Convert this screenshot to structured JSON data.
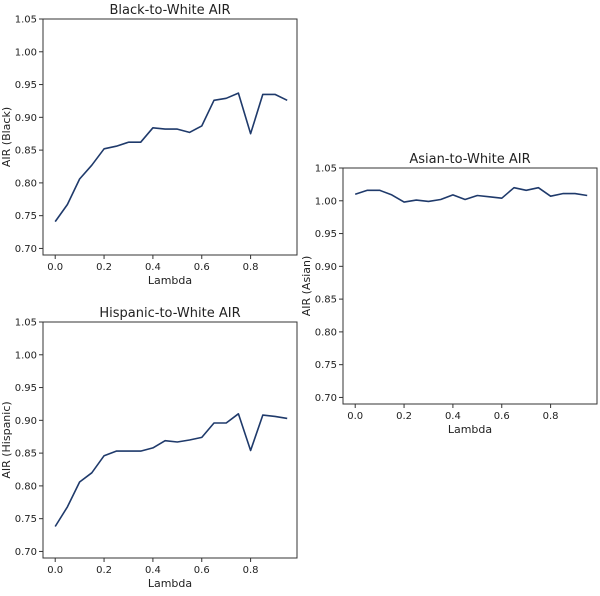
{
  "chart_data": [
    {
      "type": "line",
      "title": "Black-to-White AIR",
      "xlabel": "Lambda",
      "ylabel": "AIR (Black)",
      "xlim": [
        -0.05,
        0.99
      ],
      "ylim": [
        0.69,
        1.05
      ],
      "xticks": [
        "0.0",
        "0.2",
        "0.4",
        "0.6",
        "0.8"
      ],
      "xtick_values": [
        0,
        0.2,
        0.4,
        0.6,
        0.8
      ],
      "yticks": [
        "0.70",
        "0.75",
        "0.80",
        "0.85",
        "0.90",
        "0.95",
        "1.00",
        "1.05"
      ],
      "ytick_values": [
        0.7,
        0.75,
        0.8,
        0.85,
        0.9,
        0.95,
        1.0,
        1.05
      ],
      "grid": false,
      "x": [
        0,
        0.05,
        0.1,
        0.15,
        0.2,
        0.25,
        0.3,
        0.35,
        0.4,
        0.45,
        0.5,
        0.55,
        0.6,
        0.65,
        0.7,
        0.75,
        0.8,
        0.85,
        0.9,
        0.95
      ],
      "series": [
        {
          "values": [
            0.741,
            0.767,
            0.806,
            0.827,
            0.852,
            0.856,
            0.862,
            0.862,
            0.884,
            0.882,
            0.882,
            0.877,
            0.887,
            0.926,
            0.929,
            0.937,
            0.875,
            0.935,
            0.935,
            0.926
          ]
        }
      ]
    },
    {
      "type": "line",
      "title": "Hispanic-to-White AIR",
      "xlabel": "Lambda",
      "ylabel": "AIR (Hispanic)",
      "xlim": [
        -0.05,
        0.99
      ],
      "ylim": [
        0.69,
        1.05
      ],
      "xticks": [
        "0.0",
        "0.2",
        "0.4",
        "0.6",
        "0.8"
      ],
      "xtick_values": [
        0,
        0.2,
        0.4,
        0.6,
        0.8
      ],
      "yticks": [
        "0.70",
        "0.75",
        "0.80",
        "0.85",
        "0.90",
        "0.95",
        "1.00",
        "1.05"
      ],
      "ytick_values": [
        0.7,
        0.75,
        0.8,
        0.85,
        0.9,
        0.95,
        1.0,
        1.05
      ],
      "grid": false,
      "x": [
        0,
        0.05,
        0.1,
        0.15,
        0.2,
        0.25,
        0.3,
        0.35,
        0.4,
        0.45,
        0.5,
        0.55,
        0.6,
        0.65,
        0.7,
        0.75,
        0.8,
        0.85,
        0.9,
        0.95
      ],
      "series": [
        {
          "values": [
            0.738,
            0.768,
            0.806,
            0.82,
            0.846,
            0.853,
            0.853,
            0.853,
            0.858,
            0.869,
            0.867,
            0.87,
            0.874,
            0.896,
            0.896,
            0.91,
            0.854,
            0.908,
            0.906,
            0.903
          ]
        }
      ]
    },
    {
      "type": "line",
      "title": "Asian-to-White AIR",
      "xlabel": "Lambda",
      "ylabel": "AIR (Asian)",
      "xlim": [
        -0.05,
        0.99
      ],
      "ylim": [
        0.69,
        1.05
      ],
      "xticks": [
        "0.0",
        "0.2",
        "0.4",
        "0.6",
        "0.8"
      ],
      "xtick_values": [
        0,
        0.2,
        0.4,
        0.6,
        0.8
      ],
      "yticks": [
        "0.70",
        "0.75",
        "0.80",
        "0.85",
        "0.90",
        "0.95",
        "1.00",
        "1.05"
      ],
      "ytick_values": [
        0.7,
        0.75,
        0.8,
        0.85,
        0.9,
        0.95,
        1.0,
        1.05
      ],
      "grid": false,
      "x": [
        0,
        0.05,
        0.1,
        0.15,
        0.2,
        0.25,
        0.3,
        0.35,
        0.4,
        0.45,
        0.5,
        0.55,
        0.6,
        0.65,
        0.7,
        0.75,
        0.8,
        0.85,
        0.9,
        0.95
      ],
      "series": [
        {
          "values": [
            1.01,
            1.016,
            1.016,
            1.009,
            0.998,
            1.001,
            0.999,
            1.002,
            1.009,
            1.002,
            1.008,
            1.006,
            1.004,
            1.02,
            1.016,
            1.02,
            1.007,
            1.011,
            1.011,
            1.008
          ]
        }
      ]
    }
  ],
  "colors": {
    "series": "#1f3a6b",
    "frame": "#333333"
  }
}
